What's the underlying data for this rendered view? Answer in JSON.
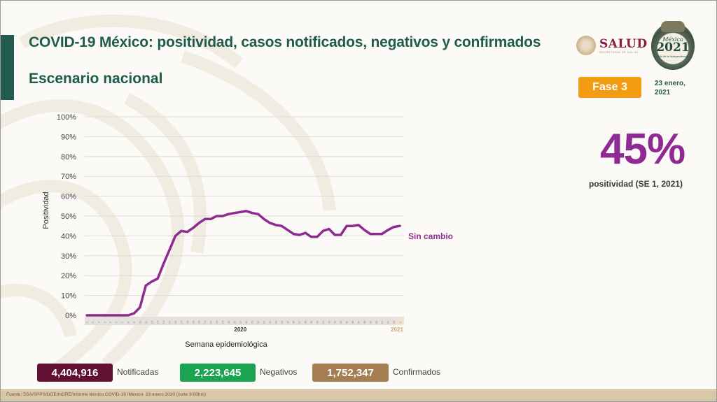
{
  "header": {
    "title": "COVID-19 México: positividad, casos notificados, negativos y confirmados",
    "subtitle": "Escenario nacional"
  },
  "logos": {
    "salud": {
      "word": "SALUD",
      "sub": "SECRETARÍA DE SALUD"
    },
    "mexico2021": {
      "top": "México",
      "year": "2021",
      "sub": "Año de la Independencia"
    }
  },
  "badge": {
    "label": "Fase 3",
    "color": "#f39c12"
  },
  "date": {
    "line1": "23 enero,",
    "line2": "2021"
  },
  "highlight": {
    "value": "45%",
    "caption": "positividad (SE 1, 2021)",
    "color": "#8e2a92"
  },
  "stats": [
    {
      "value": "4,404,916",
      "label": "Notificadas",
      "color": "#621132"
    },
    {
      "value": "2,223,645",
      "label": "Negativos",
      "color": "#1aa351"
    },
    {
      "value": "1,752,347",
      "label": "Confirmados",
      "color": "#a57f52"
    }
  ],
  "footer": {
    "source": "Fuente: SSA/SPPS/DGE/InDRE/Informe técnico.COVID-19 /México- 23 enero 2020 (corte 9:00hrs)"
  },
  "chart_data": {
    "type": "line",
    "title": "",
    "xlabel": "Semana epidemiológica",
    "ylabel": "Positividad",
    "ylim": [
      0,
      100
    ],
    "yticks": [
      "0%",
      "10%",
      "20%",
      "30%",
      "40%",
      "50%",
      "60%",
      "70%",
      "80%",
      "90%",
      "100%"
    ],
    "grid": true,
    "year_labels": [
      {
        "label": "2020",
        "at_index": 26
      },
      {
        "label": "2021",
        "at_index": 53
      }
    ],
    "annotation": {
      "text": "Sin cambio",
      "color": "#8e2a92"
    },
    "x": [
      "1",
      "2",
      "3",
      "4",
      "5",
      "6",
      "7",
      "8",
      "9",
      "10",
      "11",
      "12",
      "13",
      "14",
      "15",
      "16",
      "17",
      "18",
      "19",
      "20",
      "21",
      "22",
      "23",
      "24",
      "25",
      "26",
      "27",
      "28",
      "29",
      "30",
      "31",
      "32",
      "33",
      "34",
      "35",
      "36",
      "37",
      "38",
      "39",
      "40",
      "41",
      "42",
      "43",
      "44",
      "45",
      "46",
      "47",
      "48",
      "49",
      "50",
      "51",
      "52",
      "53",
      "1"
    ],
    "series": [
      {
        "name": "Positividad",
        "color": "#8e2a92",
        "values": [
          0,
          0,
          0,
          0,
          0,
          0,
          0,
          0,
          1,
          4,
          15,
          17,
          18.5,
          26,
          33,
          40,
          42.5,
          42,
          44,
          46.5,
          48.5,
          48.5,
          50,
          50,
          51,
          51.5,
          52,
          52.5,
          51.5,
          51,
          48.5,
          46.5,
          45.5,
          45,
          43,
          41,
          40.5,
          41.5,
          39.5,
          39.5,
          42.5,
          43.5,
          40.5,
          40.5,
          45,
          45,
          45.5,
          43,
          41,
          41,
          41,
          43,
          44.5,
          45
        ]
      }
    ]
  }
}
